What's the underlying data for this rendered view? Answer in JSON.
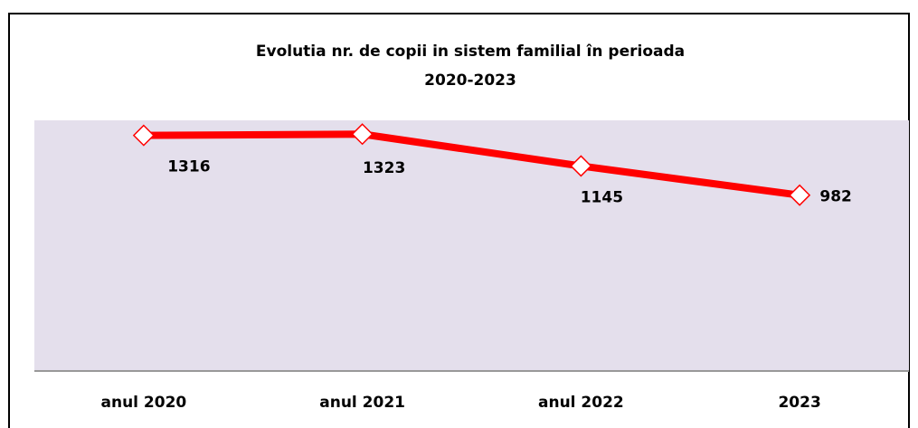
{
  "chart_data": {
    "type": "line",
    "title": [
      "Evolutia nr. de copii in sistem familial în perioada",
      "2020-2023"
    ],
    "categories": [
      "anul 2020",
      "anul 2021",
      "anul 2022",
      "2023"
    ],
    "series": [
      {
        "name": null,
        "color": "#ff0000",
        "values": [
          1316,
          1323,
          1145,
          982
        ]
      }
    ],
    "ylim": [
      0,
      1400
    ],
    "yticks": [],
    "grid": false,
    "legend": false
  }
}
